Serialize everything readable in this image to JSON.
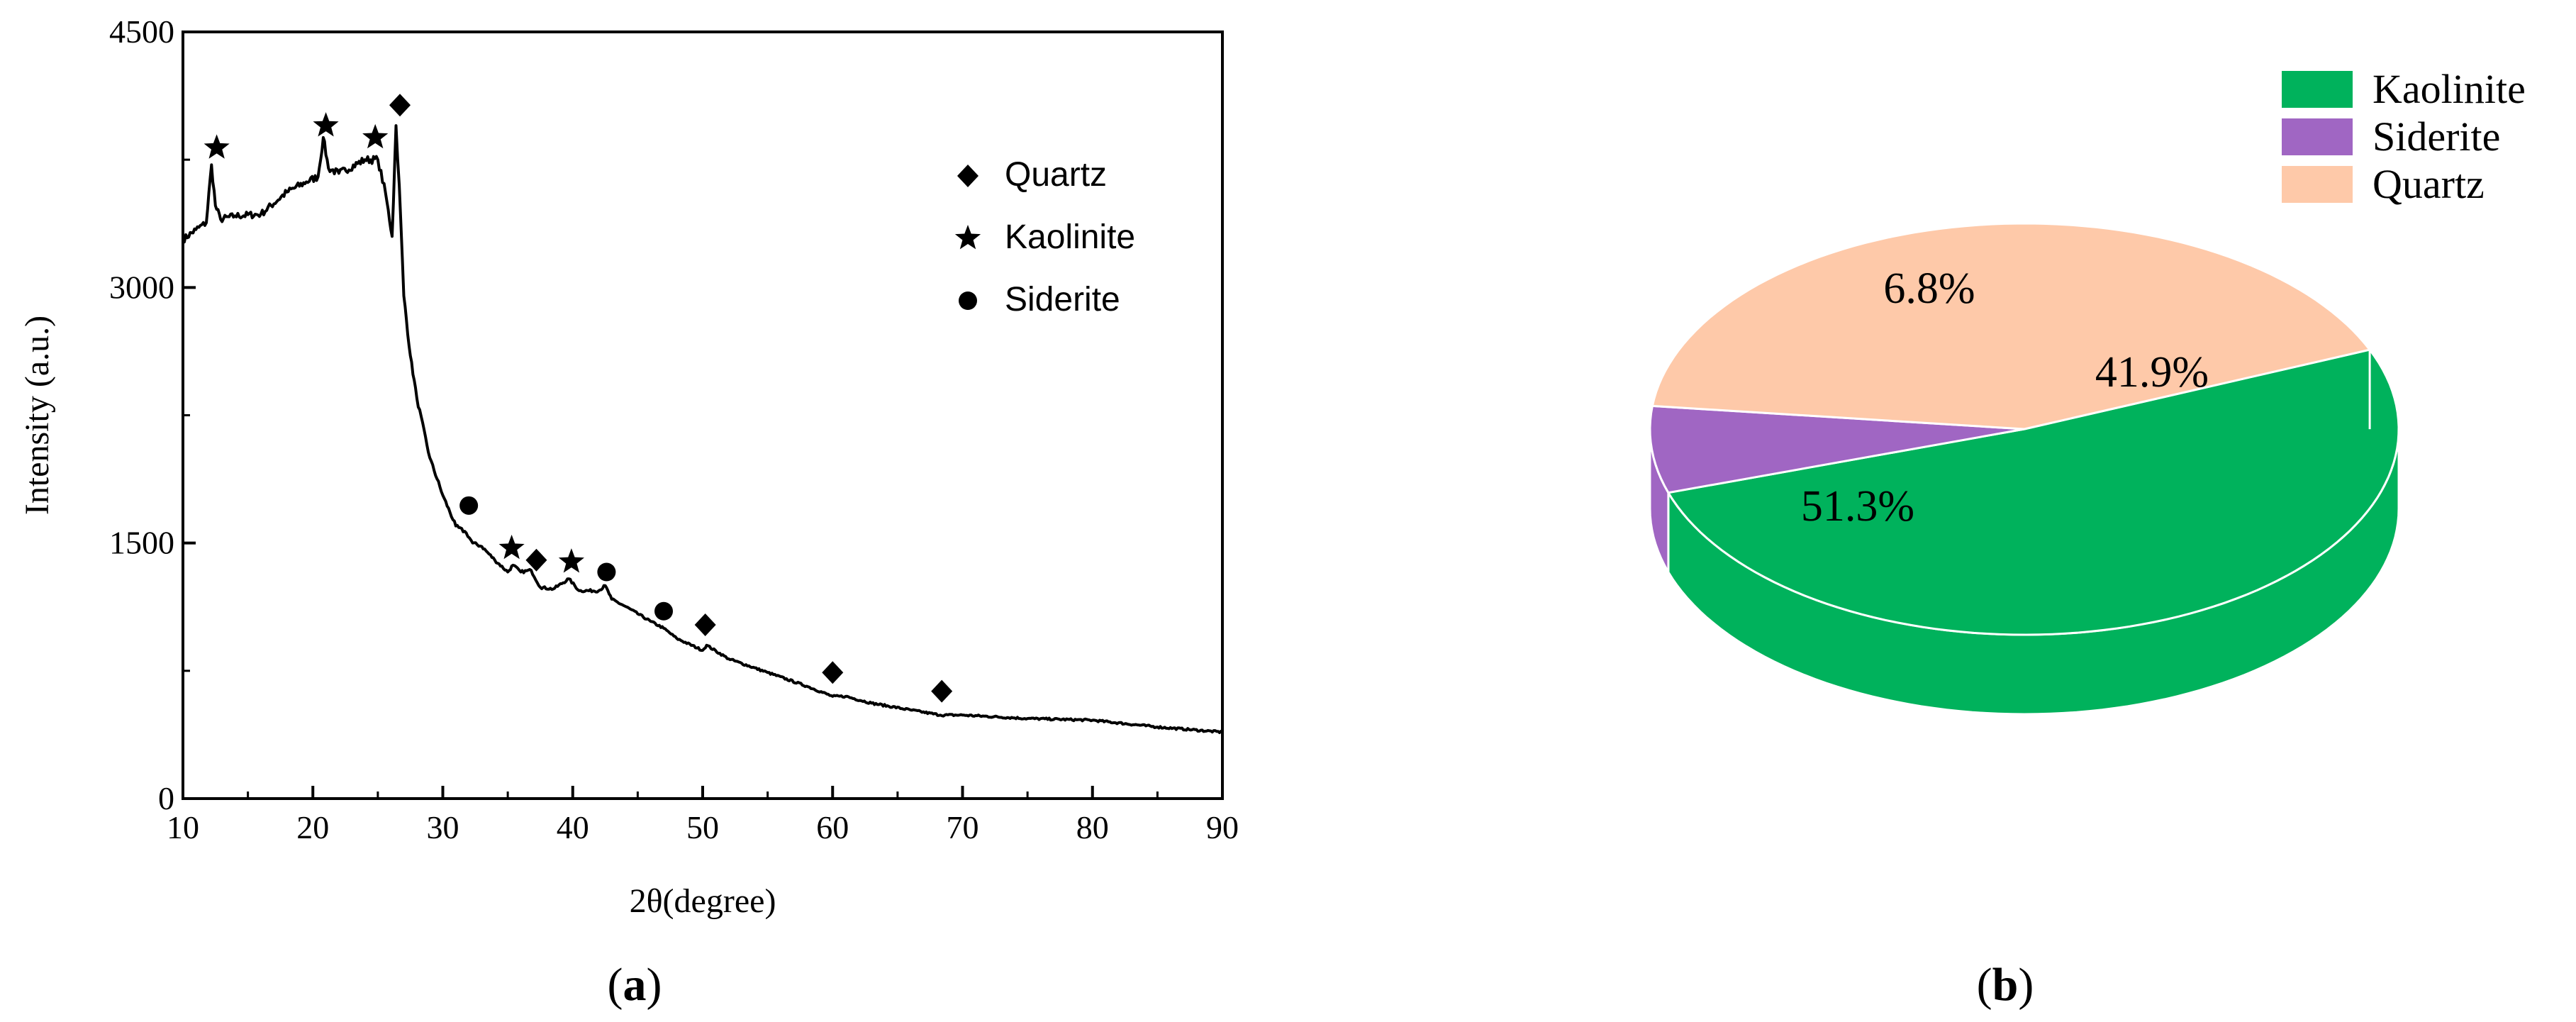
{
  "chart_data": [
    {
      "type": "line",
      "panel_label": "a",
      "xlabel": "2θ(degree)",
      "ylabel": "Intensity (a.u.)",
      "xlim": [
        10,
        90
      ],
      "ylim": [
        0,
        4500
      ],
      "x_ticks": [
        10,
        20,
        30,
        40,
        50,
        60,
        70,
        80,
        90
      ],
      "y_ticks": [
        0,
        1500,
        3000,
        4500
      ],
      "series": [
        {
          "x": [
            10,
            11,
            11.8,
            12.2,
            12.5,
            12.9,
            14,
            16,
            18,
            19.5,
            20.4,
            20.8,
            21.2,
            22,
            24,
            25,
            25.6,
            26.1,
            26.4,
            26.65,
            27,
            27.5,
            28,
            29,
            30,
            31,
            31.8,
            32.3,
            33,
            34,
            35,
            35.4,
            36,
            36.8,
            37.5,
            38.5,
            39.7,
            40.5,
            42,
            42.5,
            43,
            44,
            46,
            47,
            48,
            50,
            50.3,
            52,
            55,
            58,
            60,
            61,
            63,
            66,
            68.3,
            70,
            75,
            80,
            85,
            90
          ],
          "y": [
            3280,
            3340,
            3380,
            3720,
            3480,
            3400,
            3420,
            3430,
            3560,
            3620,
            3650,
            3880,
            3700,
            3670,
            3750,
            3750,
            3550,
            3300,
            3950,
            3600,
            2950,
            2600,
            2350,
            2000,
            1780,
            1600,
            1560,
            1500,
            1480,
            1400,
            1330,
            1370,
            1330,
            1340,
            1240,
            1230,
            1290,
            1220,
            1220,
            1250,
            1170,
            1130,
            1040,
            1000,
            940,
            870,
            900,
            820,
            740,
            660,
            600,
            600,
            560,
            520,
            490,
            490,
            470,
            460,
            420,
            390
          ]
        }
      ],
      "markers": [
        {
          "symbol": "diamond",
          "x": 26.7,
          "y": 4070
        },
        {
          "symbol": "star",
          "x": 12.6,
          "y": 3820
        },
        {
          "symbol": "star",
          "x": 21.0,
          "y": 3950
        },
        {
          "symbol": "star",
          "x": 24.8,
          "y": 3880
        },
        {
          "symbol": "circle",
          "x": 32.0,
          "y": 1720
        },
        {
          "symbol": "star",
          "x": 35.3,
          "y": 1470
        },
        {
          "symbol": "diamond",
          "x": 37.2,
          "y": 1400
        },
        {
          "symbol": "star",
          "x": 39.9,
          "y": 1390
        },
        {
          "symbol": "circle",
          "x": 42.6,
          "y": 1330
        },
        {
          "symbol": "circle",
          "x": 47.0,
          "y": 1100
        },
        {
          "symbol": "diamond",
          "x": 50.2,
          "y": 1020
        },
        {
          "symbol": "diamond",
          "x": 60.0,
          "y": 740
        },
        {
          "symbol": "diamond",
          "x": 68.4,
          "y": 630
        }
      ],
      "legend": [
        {
          "symbol": "diamond",
          "label": "Quartz"
        },
        {
          "symbol": "star",
          "label": "Kaolinite"
        },
        {
          "symbol": "circle",
          "label": "Siderite"
        }
      ],
      "legend_placement": "upper-right",
      "grid": false
    },
    {
      "type": "pie",
      "panel_label": "b",
      "categories": [
        "Kaolinite",
        "Siderite",
        "Quartz"
      ],
      "values": [
        51.3,
        6.8,
        41.9
      ],
      "labels": [
        "51.3%",
        "6.8%",
        "41.9%"
      ],
      "colors": [
        "#00B25C",
        "#A066C3",
        "#FEC9A9"
      ],
      "side_colors": [
        "#00B25C",
        "#A066C3",
        "#FEC9A9"
      ],
      "legend_placement": "top-right",
      "style": "3d"
    }
  ]
}
